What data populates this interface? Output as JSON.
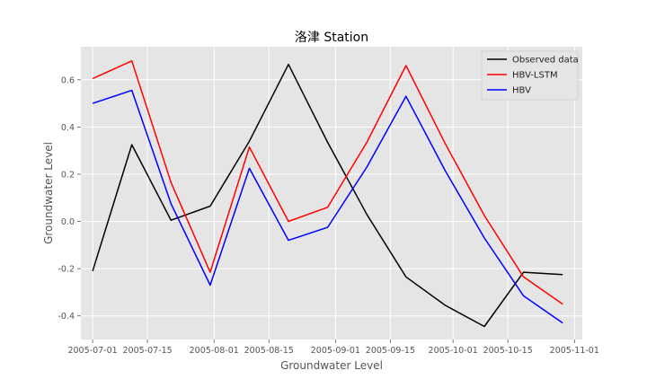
{
  "chart_data": {
    "type": "line",
    "title": "洛津 Station",
    "xlabel": "Groundwater Level",
    "ylabel": "Groundwater Level",
    "x_ticks": [
      "2005-07-01",
      "2005-07-15",
      "2005-08-01",
      "2005-08-15",
      "2005-09-01",
      "2005-09-15",
      "2005-10-01",
      "2005-10-15",
      "2005-11-01"
    ],
    "y_ticks": [
      "-0.4",
      "-0.2",
      "0.0",
      "0.2",
      "0.4",
      "0.6"
    ],
    "xlim": [
      "2005-06-28",
      "2005-11-03"
    ],
    "ylim": [
      -0.5,
      0.74
    ],
    "grid": true,
    "legend_position": "top-right",
    "x": [
      "2005-07-01",
      "2005-07-11",
      "2005-07-21",
      "2005-07-31",
      "2005-08-10",
      "2005-08-20",
      "2005-08-30",
      "2005-09-09",
      "2005-09-19",
      "2005-09-29",
      "2005-10-09",
      "2005-10-19",
      "2005-10-29"
    ],
    "series": [
      {
        "name": "Observed data",
        "color": "#000000",
        "values": [
          -0.21,
          0.325,
          0.005,
          0.065,
          0.34,
          0.665,
          0.335,
          0.03,
          -0.235,
          -0.355,
          -0.445,
          -0.215,
          -0.225
        ]
      },
      {
        "name": "HBV-LSTM",
        "color": "#ff0000",
        "values": [
          0.605,
          0.68,
          0.165,
          -0.215,
          0.315,
          0.0,
          0.06,
          0.335,
          0.66,
          0.33,
          0.025,
          -0.235,
          -0.35
        ]
      },
      {
        "name": "HBV",
        "color": "#0000ff",
        "values": [
          0.5,
          0.555,
          0.075,
          -0.27,
          0.225,
          -0.08,
          -0.025,
          0.23,
          0.53,
          0.215,
          -0.07,
          -0.315,
          -0.43
        ]
      }
    ]
  }
}
